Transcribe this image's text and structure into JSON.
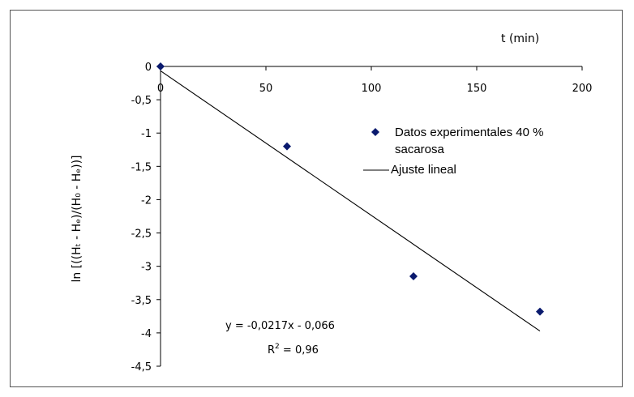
{
  "chart_data": {
    "type": "scatter",
    "xlabel": "t (min)",
    "ylabel": "ln [((Hₜ - Hₑ)/(H₀ - Hₑ))]",
    "xlim": [
      0,
      200
    ],
    "ylim": [
      -4.5,
      0
    ],
    "x_ticks": [
      0,
      50,
      100,
      150,
      200
    ],
    "y_ticks": [
      0,
      -0.5,
      -1,
      -1.5,
      -2,
      -2.5,
      -3,
      -3.5,
      -4,
      -4.5
    ],
    "x_tick_labels": [
      "0",
      "50",
      "100",
      "150",
      "200"
    ],
    "y_tick_labels": [
      "0",
      "-0,5",
      "-1",
      "-1,5",
      "-2",
      "-2,5",
      "-3",
      "-3,5",
      "-4",
      "-4,5"
    ],
    "grid": false,
    "legend_position": "right",
    "series": [
      {
        "name": "Datos experimentales 40 % sacarosa",
        "kind": "scatter",
        "marker": "diamond",
        "color": "#0a1a6e",
        "x": [
          0,
          60,
          120,
          180
        ],
        "y": [
          0,
          -1.2,
          -3.15,
          -3.68
        ]
      },
      {
        "name": "Ajuste lineal",
        "kind": "line",
        "color": "#000000",
        "x": [
          0,
          180
        ],
        "y": [
          -0.066,
          -3.972
        ]
      }
    ],
    "legend_labels": [
      "Datos experimentales 40 %",
      "sacarosa",
      "Ajuste lineal"
    ],
    "annotations": {
      "equation": "y = -0,0217x - 0,066",
      "r2_prefix": "R",
      "r2_sup": "2",
      "r2_suffix": " = 0,96"
    }
  }
}
